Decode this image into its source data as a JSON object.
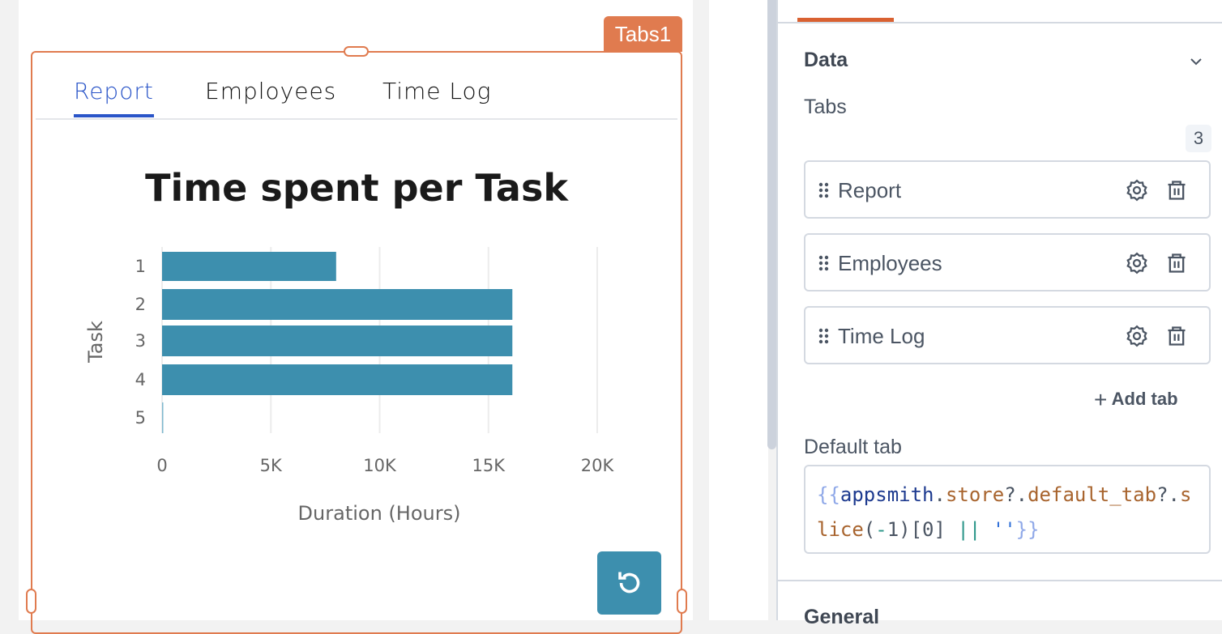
{
  "widget": {
    "name": "Tabs1",
    "color": "#e07b4f"
  },
  "tabs": [
    {
      "label": "Report",
      "active": true
    },
    {
      "label": "Employees",
      "active": false
    },
    {
      "label": "Time Log",
      "active": false
    }
  ],
  "chart_data": {
    "type": "bar",
    "orientation": "horizontal",
    "title": "Time spent per Task",
    "xlabel": "Duration (Hours)",
    "ylabel": "Task",
    "categories": [
      "1",
      "2",
      "3",
      "4",
      "5"
    ],
    "values": [
      8000,
      16100,
      16100,
      16100,
      50
    ],
    "xlim": [
      0,
      20000
    ],
    "xticks": [
      "0",
      "5K",
      "10K",
      "15K",
      "20K"
    ],
    "grid": true,
    "color": "#3d8fae"
  },
  "refresh_icon": "refresh-icon",
  "panel": {
    "section": "Data",
    "tabs_label": "Tabs",
    "count": "3",
    "items": [
      {
        "label": "Report"
      },
      {
        "label": "Employees"
      },
      {
        "label": "Time Log"
      }
    ],
    "add_tab": "Add tab",
    "default_tab_label": "Default tab",
    "default_tab_value": "{{appsmith.store?.default_tab?.slice(-1)[0] || ''}}",
    "next_section": "General"
  }
}
